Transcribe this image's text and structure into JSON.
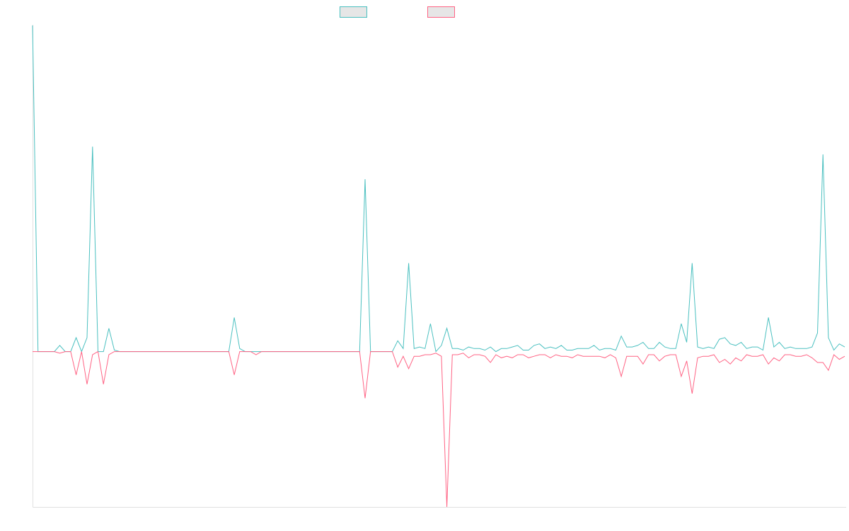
{
  "chart_data": {
    "type": "line",
    "title": "",
    "xlabel": "",
    "ylabel": "",
    "grid": false,
    "legend_position": "top",
    "x_count": 150,
    "ylim": [
      -1,
      2.1
    ],
    "series": [
      {
        "label": "",
        "color": "#4bc0c0",
        "values": [
          2.1,
          0.0,
          0.0,
          0.0,
          0.0,
          0.04,
          0.0,
          0.0,
          0.09,
          0.0,
          0.09,
          1.32,
          0.0,
          0.0,
          0.15,
          0.01,
          0.0,
          0.0,
          0.0,
          0.0,
          0.0,
          0.0,
          0.0,
          0.0,
          0.0,
          0.0,
          0.0,
          0.0,
          0.0,
          0.0,
          0.0,
          0.0,
          0.0,
          0.0,
          0.0,
          0.0,
          0.0,
          0.22,
          0.02,
          0.0,
          0.0,
          0.0,
          0.0,
          0.0,
          0.0,
          0.0,
          0.0,
          0.0,
          0.0,
          0.0,
          0.0,
          0.0,
          0.0,
          0.0,
          0.0,
          0.0,
          0.0,
          0.0,
          0.0,
          0.0,
          0.0,
          1.11,
          0.0,
          0.0,
          0.0,
          0.0,
          0.0,
          0.07,
          0.02,
          0.57,
          0.02,
          0.03,
          0.02,
          0.18,
          0.0,
          0.04,
          0.15,
          0.02,
          0.02,
          0.01,
          0.03,
          0.02,
          0.02,
          0.01,
          0.03,
          0.0,
          0.02,
          0.02,
          0.03,
          0.04,
          0.01,
          0.01,
          0.04,
          0.05,
          0.02,
          0.03,
          0.02,
          0.04,
          0.01,
          0.01,
          0.02,
          0.02,
          0.02,
          0.04,
          0.01,
          0.02,
          0.02,
          0.01,
          0.1,
          0.03,
          0.03,
          0.04,
          0.06,
          0.02,
          0.02,
          0.06,
          0.03,
          0.02,
          0.02,
          0.18,
          0.06,
          0.57,
          0.03,
          0.02,
          0.03,
          0.02,
          0.08,
          0.09,
          0.05,
          0.04,
          0.06,
          0.02,
          0.03,
          0.03,
          0.01,
          0.22,
          0.03,
          0.06,
          0.02,
          0.03,
          0.02,
          0.02,
          0.02,
          0.03,
          0.12,
          1.27,
          0.09,
          0.01,
          0.05,
          0.03
        ]
      },
      {
        "label": "",
        "color": "#ff6384",
        "values": [
          0.0,
          0.0,
          0.0,
          0.0,
          0.0,
          -0.01,
          0.0,
          0.0,
          -0.15,
          0.0,
          -0.21,
          -0.02,
          0.0,
          -0.21,
          -0.02,
          0.0,
          0.0,
          0.0,
          0.0,
          0.0,
          0.0,
          0.0,
          0.0,
          0.0,
          0.0,
          0.0,
          0.0,
          0.0,
          0.0,
          0.0,
          0.0,
          0.0,
          0.0,
          0.0,
          0.0,
          0.0,
          0.0,
          -0.15,
          0.0,
          0.0,
          0.0,
          -0.02,
          0.0,
          0.0,
          0.0,
          0.0,
          0.0,
          0.0,
          0.0,
          0.0,
          0.0,
          0.0,
          0.0,
          0.0,
          0.0,
          0.0,
          0.0,
          0.0,
          0.0,
          0.0,
          0.0,
          -0.3,
          0.0,
          0.0,
          0.0,
          0.0,
          0.0,
          -0.1,
          -0.03,
          -0.11,
          -0.03,
          -0.03,
          -0.02,
          -0.02,
          -0.01,
          -0.03,
          -1.0,
          -0.02,
          -0.02,
          -0.01,
          -0.04,
          -0.02,
          -0.02,
          -0.03,
          -0.07,
          -0.02,
          -0.04,
          -0.03,
          -0.04,
          -0.02,
          -0.02,
          -0.04,
          -0.03,
          -0.02,
          -0.02,
          -0.04,
          -0.02,
          -0.03,
          -0.03,
          -0.04,
          -0.02,
          -0.03,
          -0.03,
          -0.03,
          -0.03,
          -0.04,
          -0.02,
          -0.04,
          -0.16,
          -0.03,
          -0.03,
          -0.03,
          -0.08,
          -0.02,
          -0.02,
          -0.06,
          -0.03,
          -0.02,
          -0.02,
          -0.16,
          -0.06,
          -0.27,
          -0.04,
          -0.03,
          -0.03,
          -0.02,
          -0.07,
          -0.05,
          -0.08,
          -0.04,
          -0.06,
          -0.02,
          -0.03,
          -0.03,
          -0.02,
          -0.08,
          -0.04,
          -0.06,
          -0.02,
          -0.02,
          -0.03,
          -0.03,
          -0.02,
          -0.04,
          -0.07,
          -0.07,
          -0.12,
          -0.02,
          -0.05,
          -0.03
        ]
      }
    ]
  }
}
